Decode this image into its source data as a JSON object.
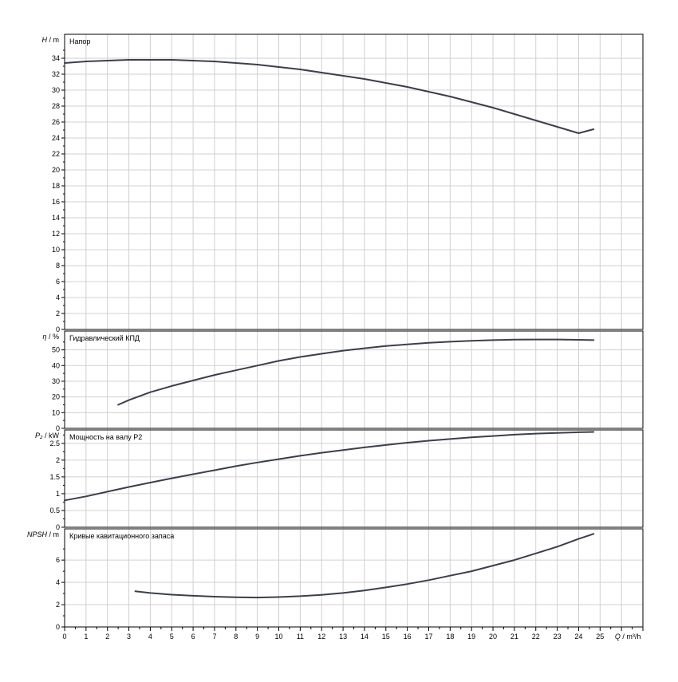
{
  "chart_data": {
    "type": "line",
    "x_axis": {
      "quantity": "Q",
      "unit": "m³/h",
      "range": [
        0,
        27
      ],
      "ticks": [
        0,
        1,
        2,
        3,
        4,
        5,
        6,
        7,
        8,
        9,
        10,
        11,
        12,
        13,
        14,
        15,
        16,
        17,
        18,
        19,
        20,
        21,
        22,
        23,
        24,
        25
      ],
      "tick_labels": [
        "0",
        "1",
        "2",
        "3",
        "4",
        "5",
        "6",
        "7",
        "8",
        "9",
        "10",
        "11",
        "12",
        "13",
        "14",
        "15",
        "16",
        "17",
        "18",
        "19",
        "20",
        "21",
        "22",
        "23",
        "24",
        "25"
      ],
      "minor_ticks_per_unit": 2
    },
    "grid": true,
    "panels": [
      {
        "key": "head",
        "title": "Напор",
        "y_quantity": "H",
        "y_unit": "m",
        "y_range": [
          0,
          37
        ],
        "y_ticks": [
          0,
          2,
          4,
          6,
          8,
          10,
          12,
          14,
          16,
          18,
          20,
          22,
          24,
          26,
          28,
          30,
          32,
          34
        ],
        "series": [
          {
            "x": [
              0,
              1,
              2,
              3,
              4,
              5,
              6,
              7,
              8,
              9,
              10,
              11,
              12,
              13,
              14,
              15,
              16,
              17,
              18,
              19,
              20,
              21,
              22,
              23,
              24,
              24.7
            ],
            "y": [
              33.4,
              33.6,
              33.7,
              33.8,
              33.8,
              33.8,
              33.7,
              33.6,
              33.4,
              33.2,
              32.9,
              32.6,
              32.2,
              31.8,
              31.4,
              30.9,
              30.4,
              29.8,
              29.2,
              28.5,
              27.8,
              27.0,
              26.2,
              25.4,
              24.6,
              25.1
            ]
          }
        ]
      },
      {
        "key": "efficiency",
        "title": "Гидравлический КПД",
        "y_quantity": "η",
        "y_unit": "%",
        "y_range": [
          0,
          62
        ],
        "y_ticks": [
          0,
          10,
          20,
          30,
          40,
          50
        ],
        "series": [
          {
            "x": [
              2.5,
              3,
              4,
              5,
              6,
              7,
              8,
              9,
              10,
              11,
              12,
              13,
              14,
              15,
              16,
              17,
              18,
              19,
              20,
              21,
              22,
              23,
              24,
              24.7
            ],
            "y": [
              15,
              18,
              23,
              27,
              30.5,
              34,
              37,
              40,
              43,
              45.5,
              47.5,
              49.5,
              51,
              52.5,
              53.5,
              54.5,
              55.2,
              55.8,
              56.2,
              56.5,
              56.6,
              56.6,
              56.4,
              56.2
            ]
          }
        ]
      },
      {
        "key": "power",
        "title": "Мощность на валу P2",
        "y_quantity": "P₂",
        "y_unit": "kW",
        "y_range": [
          0,
          2.9
        ],
        "y_ticks": [
          0,
          0.5,
          1,
          1.5,
          2,
          2.5
        ],
        "y_tick_labels": [
          "0",
          "0.5",
          "1",
          "1.5",
          "2",
          "2.5"
        ],
        "series": [
          {
            "x": [
              0,
              1,
              2,
              3,
              4,
              5,
              6,
              7,
              8,
              9,
              10,
              11,
              12,
              13,
              14,
              15,
              16,
              17,
              18,
              19,
              20,
              21,
              22,
              23,
              24,
              24.7
            ],
            "y": [
              0.8,
              0.92,
              1.06,
              1.2,
              1.33,
              1.46,
              1.58,
              1.7,
              1.82,
              1.93,
              2.03,
              2.13,
              2.22,
              2.3,
              2.38,
              2.45,
              2.52,
              2.58,
              2.63,
              2.68,
              2.72,
              2.76,
              2.79,
              2.81,
              2.83,
              2.84
            ]
          }
        ]
      },
      {
        "key": "npsh",
        "title": "Кривые кавитационного запаса",
        "y_quantity": "NPSH",
        "y_unit": "m",
        "y_range": [
          0,
          8.8
        ],
        "y_ticks": [
          0,
          2,
          4,
          6
        ],
        "series": [
          {
            "x": [
              3.3,
              4,
              5,
              6,
              7,
              8,
              9,
              10,
              11,
              12,
              13,
              14,
              15,
              16,
              17,
              18,
              19,
              20,
              21,
              22,
              23,
              24,
              24.7
            ],
            "y": [
              3.2,
              3.05,
              2.9,
              2.8,
              2.72,
              2.66,
              2.64,
              2.68,
              2.76,
              2.88,
              3.05,
              3.28,
              3.55,
              3.85,
              4.2,
              4.6,
              5.0,
              5.5,
              6.0,
              6.6,
              7.2,
              7.9,
              8.35
            ]
          }
        ]
      }
    ]
  }
}
